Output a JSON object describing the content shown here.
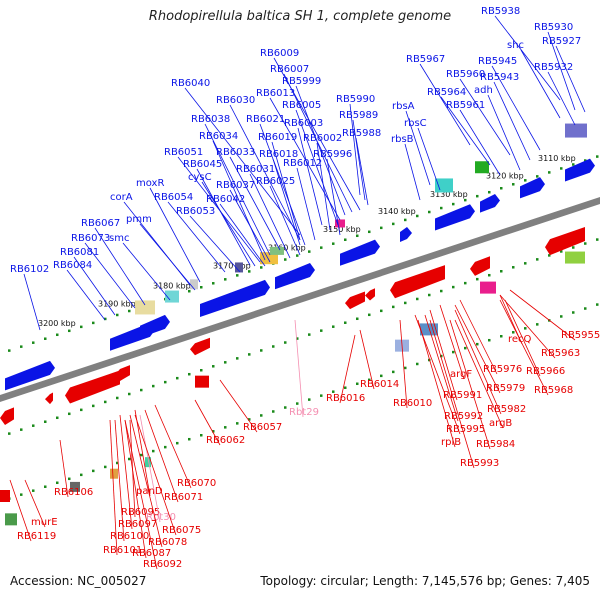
{
  "title": "Rhodopirellula baltica SH 1, complete genome",
  "footer": {
    "accession": "Accession: NC_005027",
    "summary": "Topology: circular; Length: 7,145,576 bp; Genes: 7,405"
  },
  "colors": {
    "forward": "#0a14e6",
    "reverse": "#e60000",
    "rna": "#f48fb1",
    "backbone": "#808080",
    "dots": "#1a8a1a"
  },
  "ticks": [
    "3110 kbp",
    "3120 kbp",
    "3130 kbp",
    "3140 kbp",
    "3150 kbp",
    "3160 kbp",
    "3170 kbp",
    "3180 kbp",
    "3190 kbp",
    "3200 kbp"
  ],
  "top_labels": [
    "RB5938",
    "RB5930",
    "shc",
    "RB5927",
    "RB5932",
    "RB5967",
    "RB5945",
    "RB5960",
    "RB5943",
    "adh",
    "RB5964",
    "RB5961",
    "rbsA",
    "rbsC",
    "rbsB",
    "RB6009",
    "RB6007",
    "RB5999",
    "RB6013",
    "RB6005",
    "RB5990",
    "RB5989",
    "RB5988",
    "RB6040",
    "RB6030",
    "RB6021",
    "RB6003",
    "RB6002",
    "RB6038",
    "RB6019",
    "RB6034",
    "RB6018",
    "RB6012",
    "RB5996",
    "RB6051",
    "RB6033",
    "RB6045",
    "RB6031",
    "cysC",
    "RB6025",
    "moxR",
    "RB6037",
    "RB6054",
    "RB6042",
    "corA",
    "RB6053",
    "pmm",
    "RB6067",
    "RB6073",
    "smc",
    "RB6081",
    "RB6084",
    "RB6102"
  ],
  "bottom_labels": [
    "RB5955",
    "RB5963",
    "recQ",
    "RB5966",
    "RB5968",
    "RB5976",
    "RB5979",
    "argF",
    "RB5982",
    "RB5991",
    "argB",
    "RB5992",
    "RB5984",
    "RB5995",
    "rpiB",
    "RB5993",
    "RB6010",
    "RB6014",
    "RB6016",
    "Rbt29",
    "RB6057",
    "RB6062",
    "RB6070",
    "RB6071",
    "panD",
    "RB6095",
    "Rbt30",
    "RB6075",
    "RB6097",
    "RB6078",
    "RB6100",
    "RB6087",
    "RB6101",
    "RB6092",
    "RB6106",
    "murE",
    "RB6119"
  ]
}
